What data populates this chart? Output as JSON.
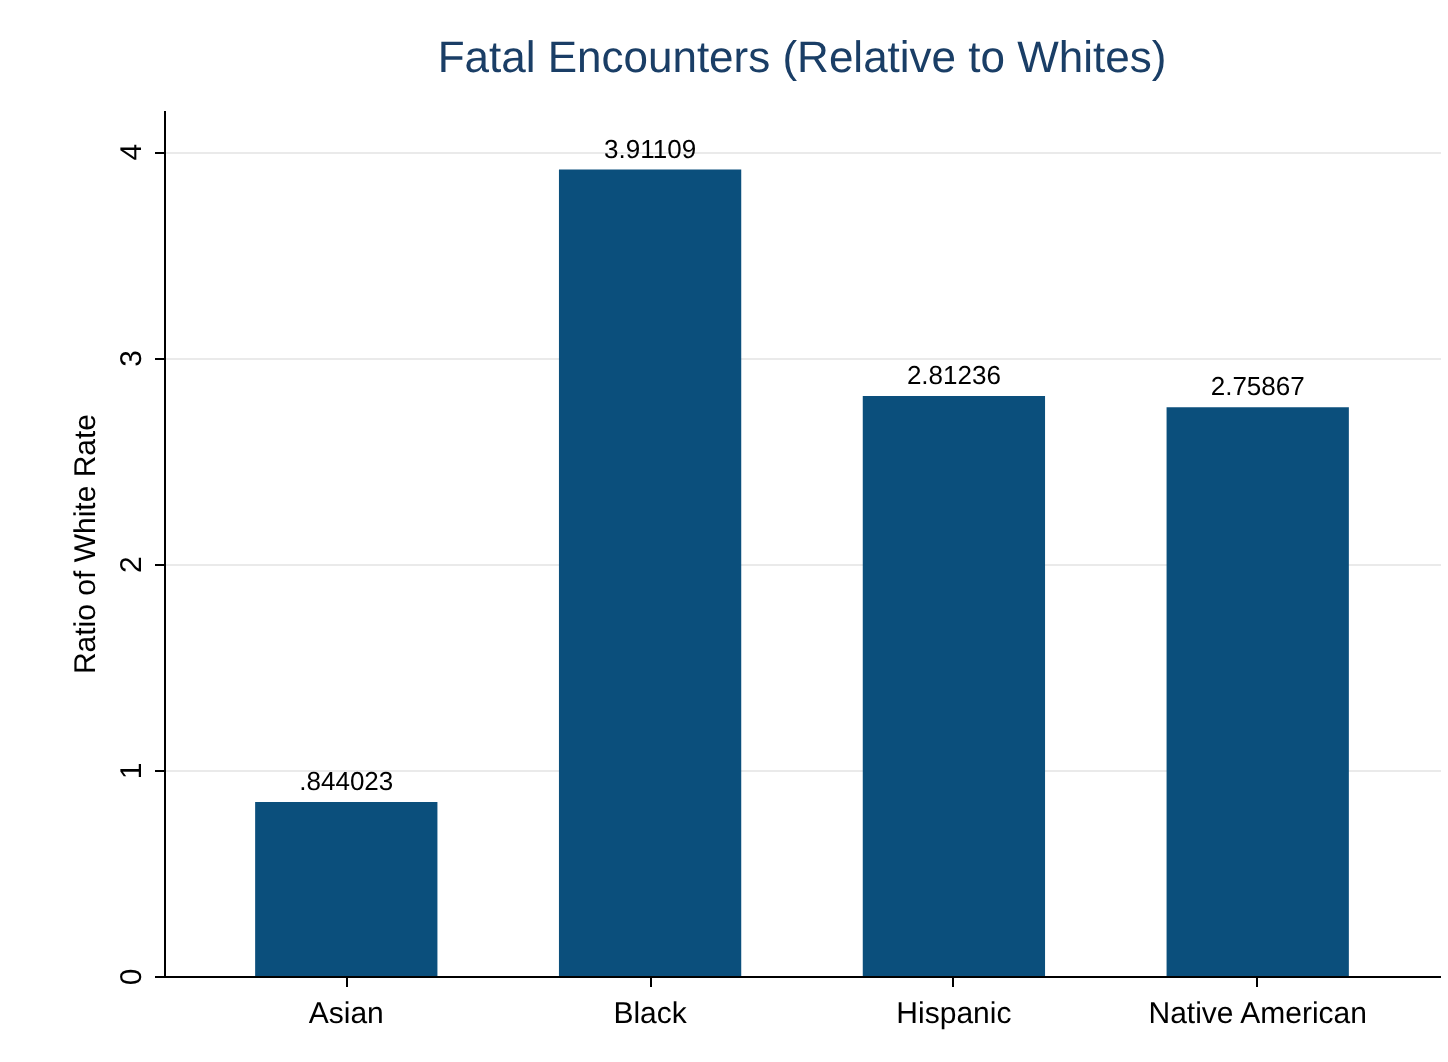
{
  "chart_data": {
    "type": "bar",
    "title": "Fatal Encounters (Relative to Whites)",
    "ylabel": "Ratio of White Rate",
    "categories": [
      "Asian",
      "Black",
      "Hispanic",
      "Native American"
    ],
    "values": [
      0.844023,
      3.91109,
      2.81236,
      2.75867
    ],
    "value_labels": [
      ".844023",
      "3.91109",
      "2.81236",
      "2.75867"
    ],
    "color": "#0b4f7c",
    "ylim": [
      0,
      4.2
    ],
    "yticks": [
      0,
      1,
      2,
      3,
      4
    ],
    "grid": "y"
  }
}
